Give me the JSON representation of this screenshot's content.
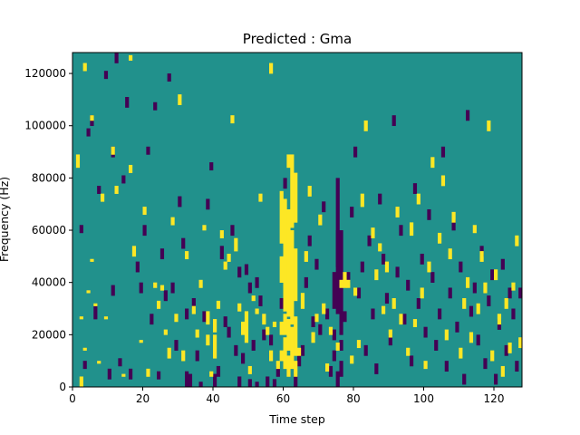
{
  "chart_data": {
    "type": "heatmap",
    "title": "Predicted : Gma",
    "xlabel": "Time step",
    "ylabel": "Frequency (Hz)",
    "xlim": [
      0,
      128
    ],
    "ylim": [
      0,
      128000
    ],
    "x_ticks": [
      "0",
      "20",
      "40",
      "60",
      "80",
      "100",
      "120"
    ],
    "y_ticks": [
      "0",
      "20000",
      "40000",
      "60000",
      "80000",
      "100000",
      "120000"
    ],
    "grid": false,
    "colormap": "viridis",
    "colors": {
      "background": "#21918c",
      "high": "#fde725",
      "low": "#440154"
    },
    "n_time_steps": 128,
    "n_frequency_bins": 128,
    "frequency_bin_hz": 1000,
    "high_cells": [
      [
        1,
        84,
        89
      ],
      [
        2,
        0,
        4
      ],
      [
        2,
        26,
        27
      ],
      [
        3,
        14,
        15
      ],
      [
        3,
        121,
        124
      ],
      [
        4,
        36,
        37
      ],
      [
        5,
        48,
        49
      ],
      [
        5,
        102,
        104
      ],
      [
        6,
        31,
        32
      ],
      [
        7,
        9,
        10
      ],
      [
        8,
        71,
        74
      ],
      [
        9,
        26,
        27
      ],
      [
        11,
        89,
        92
      ],
      [
        12,
        74,
        77
      ],
      [
        14,
        4,
        5
      ],
      [
        16,
        82,
        85
      ],
      [
        16,
        125,
        127
      ],
      [
        17,
        50,
        54
      ],
      [
        19,
        17,
        18
      ],
      [
        20,
        66,
        69
      ],
      [
        21,
        4,
        7
      ],
      [
        23,
        38,
        40
      ],
      [
        24,
        30,
        33
      ],
      [
        25,
        37,
        39
      ],
      [
        26,
        20,
        22
      ],
      [
        27,
        11,
        15
      ],
      [
        28,
        62,
        65
      ],
      [
        29,
        25,
        28
      ],
      [
        30,
        108,
        112
      ],
      [
        31,
        10,
        14
      ],
      [
        32,
        49,
        52
      ],
      [
        34,
        28,
        31
      ],
      [
        35,
        19,
        22
      ],
      [
        36,
        38,
        41
      ],
      [
        37,
        60,
        62
      ],
      [
        38,
        16,
        20
      ],
      [
        38,
        24,
        29
      ],
      [
        39,
        4,
        6
      ],
      [
        40,
        11,
        20
      ],
      [
        40,
        21,
        26
      ],
      [
        41,
        30,
        33
      ],
      [
        42,
        57,
        60
      ],
      [
        43,
        45,
        48
      ],
      [
        44,
        48,
        51
      ],
      [
        45,
        101,
        104
      ],
      [
        46,
        52,
        57
      ],
      [
        47,
        29,
        32
      ],
      [
        48,
        20,
        25
      ],
      [
        49,
        17,
        29
      ],
      [
        50,
        5,
        8
      ],
      [
        51,
        33,
        35
      ],
      [
        52,
        28,
        30
      ],
      [
        53,
        71,
        74
      ],
      [
        54,
        24,
        28
      ],
      [
        55,
        20,
        23
      ],
      [
        56,
        10,
        14
      ],
      [
        56,
        120,
        124
      ],
      [
        57,
        23,
        25
      ],
      [
        58,
        7,
        10
      ],
      [
        59,
        10,
        14
      ],
      [
        59,
        20,
        25
      ],
      [
        59,
        40,
        50
      ],
      [
        59,
        55,
        75
      ],
      [
        60,
        7,
        19
      ],
      [
        60,
        20,
        28
      ],
      [
        60,
        29,
        72
      ],
      [
        61,
        4,
        12
      ],
      [
        61,
        14,
        26
      ],
      [
        61,
        27,
        68
      ],
      [
        61,
        84,
        89
      ],
      [
        62,
        7,
        23
      ],
      [
        62,
        24,
        60
      ],
      [
        62,
        61,
        89
      ],
      [
        63,
        4,
        10
      ],
      [
        63,
        12,
        27
      ],
      [
        63,
        33,
        53
      ],
      [
        63,
        63,
        82
      ],
      [
        64,
        12,
        15
      ],
      [
        65,
        30,
        36
      ],
      [
        66,
        48,
        52
      ],
      [
        67,
        73,
        77
      ],
      [
        68,
        17,
        21
      ],
      [
        69,
        25,
        28
      ],
      [
        70,
        62,
        66
      ],
      [
        71,
        28,
        32
      ],
      [
        72,
        6,
        9
      ],
      [
        73,
        20,
        23
      ],
      [
        75,
        14,
        17
      ],
      [
        76,
        38,
        41
      ],
      [
        77,
        38,
        44
      ],
      [
        78,
        38,
        41
      ],
      [
        79,
        9,
        12
      ],
      [
        80,
        35,
        38
      ],
      [
        81,
        15,
        18
      ],
      [
        82,
        69,
        74
      ],
      [
        83,
        98,
        102
      ],
      [
        85,
        57,
        61
      ],
      [
        86,
        41,
        45
      ],
      [
        87,
        52,
        55
      ],
      [
        88,
        28,
        31
      ],
      [
        89,
        44,
        48
      ],
      [
        90,
        19,
        22
      ],
      [
        91,
        30,
        34
      ],
      [
        92,
        65,
        69
      ],
      [
        93,
        24,
        28
      ],
      [
        95,
        12,
        15
      ],
      [
        96,
        58,
        63
      ],
      [
        97,
        23,
        26
      ],
      [
        98,
        70,
        74
      ],
      [
        99,
        34,
        38
      ],
      [
        100,
        7,
        10
      ],
      [
        101,
        44,
        48
      ],
      [
        102,
        84,
        88
      ],
      [
        104,
        55,
        59
      ],
      [
        105,
        77,
        81
      ],
      [
        106,
        18,
        22
      ],
      [
        107,
        49,
        53
      ],
      [
        108,
        63,
        67
      ],
      [
        110,
        11,
        15
      ],
      [
        111,
        30,
        34
      ],
      [
        112,
        38,
        42
      ],
      [
        113,
        17,
        21
      ],
      [
        114,
        59,
        62
      ],
      [
        115,
        28,
        32
      ],
      [
        116,
        48,
        52
      ],
      [
        117,
        36,
        40
      ],
      [
        118,
        98,
        102
      ],
      [
        119,
        10,
        14
      ],
      [
        120,
        41,
        45
      ],
      [
        121,
        24,
        28
      ],
      [
        122,
        4,
        8
      ],
      [
        123,
        30,
        34
      ],
      [
        124,
        13,
        17
      ],
      [
        125,
        37,
        40
      ],
      [
        126,
        54,
        58
      ],
      [
        127,
        15,
        19
      ]
    ],
    "low_cells": [
      [
        2,
        59,
        62
      ],
      [
        3,
        7,
        10
      ],
      [
        4,
        96,
        99
      ],
      [
        5,
        100,
        104
      ],
      [
        6,
        26,
        31
      ],
      [
        7,
        74,
        77
      ],
      [
        9,
        118,
        121
      ],
      [
        10,
        3,
        7
      ],
      [
        11,
        35,
        39
      ],
      [
        11,
        88,
        92
      ],
      [
        12,
        124,
        128
      ],
      [
        13,
        8,
        11
      ],
      [
        14,
        78,
        81
      ],
      [
        15,
        107,
        111
      ],
      [
        16,
        3,
        7
      ],
      [
        18,
        44,
        48
      ],
      [
        19,
        36,
        40
      ],
      [
        20,
        58,
        62
      ],
      [
        21,
        89,
        92
      ],
      [
        22,
        24,
        28
      ],
      [
        23,
        106,
        109
      ],
      [
        24,
        3,
        6
      ],
      [
        25,
        49,
        53
      ],
      [
        26,
        33,
        37
      ],
      [
        27,
        117,
        120
      ],
      [
        28,
        36,
        40
      ],
      [
        29,
        14,
        18
      ],
      [
        30,
        69,
        73
      ],
      [
        31,
        53,
        57
      ],
      [
        32,
        0,
        6
      ],
      [
        32,
        26,
        30
      ],
      [
        33,
        0,
        5
      ],
      [
        34,
        30,
        34
      ],
      [
        35,
        10,
        14
      ],
      [
        36,
        0,
        2
      ],
      [
        37,
        25,
        29
      ],
      [
        38,
        68,
        72
      ],
      [
        39,
        83,
        86
      ],
      [
        40,
        0,
        5
      ],
      [
        41,
        4,
        8
      ],
      [
        42,
        49,
        54
      ],
      [
        43,
        23,
        27
      ],
      [
        44,
        19,
        23
      ],
      [
        45,
        58,
        62
      ],
      [
        46,
        12,
        16
      ],
      [
        47,
        0,
        4
      ],
      [
        47,
        42,
        46
      ],
      [
        48,
        9,
        13
      ],
      [
        49,
        43,
        47
      ],
      [
        50,
        0,
        3
      ],
      [
        50,
        36,
        40
      ],
      [
        51,
        14,
        18
      ],
      [
        52,
        0,
        2
      ],
      [
        52,
        38,
        42
      ],
      [
        53,
        31,
        35
      ],
      [
        54,
        18,
        22
      ],
      [
        55,
        0,
        4
      ],
      [
        56,
        16,
        20
      ],
      [
        57,
        0,
        3
      ],
      [
        58,
        4,
        8
      ],
      [
        59,
        30,
        34
      ],
      [
        60,
        76,
        80
      ],
      [
        63,
        0,
        5
      ],
      [
        64,
        8,
        12
      ],
      [
        65,
        12,
        16
      ],
      [
        66,
        38,
        42
      ],
      [
        67,
        54,
        58
      ],
      [
        68,
        23,
        27
      ],
      [
        69,
        45,
        49
      ],
      [
        70,
        20,
        24
      ],
      [
        71,
        67,
        71
      ],
      [
        72,
        26,
        30
      ],
      [
        73,
        4,
        8
      ],
      [
        74,
        10,
        14
      ],
      [
        74,
        18,
        22
      ],
      [
        74,
        30,
        44
      ],
      [
        75,
        0,
        6
      ],
      [
        75,
        28,
        60
      ],
      [
        75,
        46,
        80
      ],
      [
        76,
        4,
        10
      ],
      [
        76,
        14,
        18
      ],
      [
        76,
        20,
        60
      ],
      [
        77,
        25,
        29
      ],
      [
        78,
        40,
        44
      ],
      [
        79,
        65,
        69
      ],
      [
        80,
        88,
        92
      ],
      [
        81,
        34,
        38
      ],
      [
        82,
        44,
        48
      ],
      [
        83,
        12,
        16
      ],
      [
        84,
        54,
        58
      ],
      [
        85,
        26,
        30
      ],
      [
        86,
        5,
        9
      ],
      [
        87,
        70,
        74
      ],
      [
        88,
        47,
        51
      ],
      [
        89,
        32,
        36
      ],
      [
        90,
        16,
        20
      ],
      [
        91,
        100,
        104
      ],
      [
        92,
        42,
        46
      ],
      [
        93,
        58,
        62
      ],
      [
        94,
        24,
        28
      ],
      [
        95,
        37,
        41
      ],
      [
        96,
        8,
        12
      ],
      [
        97,
        74,
        78
      ],
      [
        98,
        30,
        34
      ],
      [
        99,
        47,
        51
      ],
      [
        100,
        19,
        23
      ],
      [
        101,
        64,
        68
      ],
      [
        102,
        40,
        44
      ],
      [
        103,
        14,
        18
      ],
      [
        104,
        26,
        30
      ],
      [
        105,
        88,
        92
      ],
      [
        106,
        6,
        10
      ],
      [
        107,
        34,
        38
      ],
      [
        108,
        60,
        64
      ],
      [
        109,
        21,
        25
      ],
      [
        110,
        44,
        48
      ],
      [
        111,
        1,
        5
      ],
      [
        112,
        102,
        106
      ],
      [
        113,
        27,
        31
      ],
      [
        114,
        36,
        40
      ],
      [
        115,
        16,
        20
      ],
      [
        116,
        50,
        54
      ],
      [
        117,
        7,
        11
      ],
      [
        118,
        31,
        35
      ],
      [
        119,
        41,
        45
      ],
      [
        120,
        1,
        5
      ],
      [
        121,
        22,
        26
      ],
      [
        122,
        45,
        49
      ],
      [
        123,
        12,
        16
      ],
      [
        124,
        34,
        38
      ],
      [
        125,
        26,
        30
      ],
      [
        126,
        6,
        10
      ],
      [
        127,
        34,
        38
      ]
    ]
  }
}
